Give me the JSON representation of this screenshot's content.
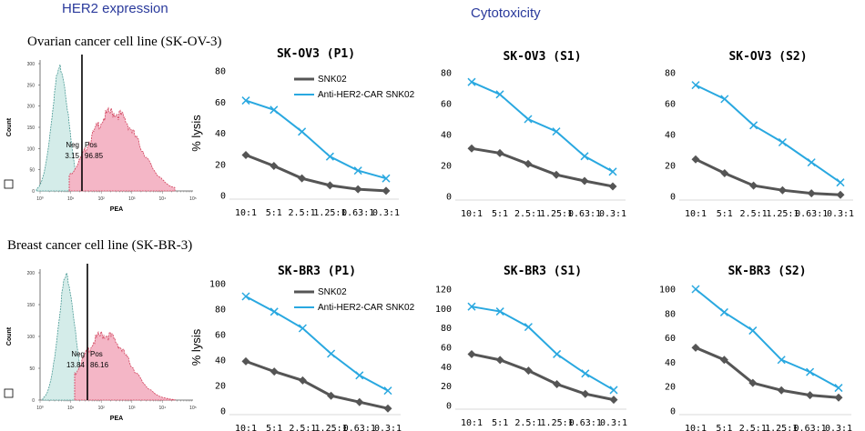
{
  "titles": {
    "her2": "HER2 expression",
    "cytotoxicity": "Cytotoxicity",
    "row1": "Ovarian cancer cell line (SK-OV-3)",
    "row2": "Breast cancer cell line (SK-BR-3)"
  },
  "histograms": [
    {
      "xlabel": "PEA",
      "ylabel": "Count",
      "yticks": [
        "300",
        "250",
        "200",
        "150",
        "100",
        "50",
        "0"
      ],
      "xticks": [
        "10⁰",
        "10¹",
        "10²",
        "10³",
        "10⁴",
        "10⁵"
      ],
      "neg_label": "Neg",
      "pos_label": "Pos",
      "neg_value": "3.15",
      "pos_value": "96.85"
    },
    {
      "xlabel": "PEA",
      "ylabel": "Count",
      "yticks": [
        "200",
        "150",
        "100",
        "50",
        "0"
      ],
      "xticks": [
        "10⁰",
        "10¹",
        "10²",
        "10³",
        "10⁴",
        "10⁵"
      ],
      "neg_label": "Neg",
      "pos_label": "Pos",
      "neg_value": "13.84",
      "pos_value": "86.16"
    }
  ],
  "colors": {
    "snk02": "#555555",
    "car": "#29a8e0",
    "neg_fill": "#d4ece9",
    "pos_fill": "#f4b6c6",
    "neg_line": "#4a9a95",
    "pos_line": "#d0405a",
    "title_blue": "#2a3a9c"
  },
  "chart_data": [
    {
      "type": "line",
      "title": "SK-OV3 (P1)",
      "ylabel": "% lysis",
      "xlabel": "",
      "categories": [
        "10:1",
        "5:1",
        "2.5:1",
        "1.25:1",
        "0.63:1",
        "0.3:1"
      ],
      "ylim": [
        0,
        80
      ],
      "yticks": [
        0,
        20,
        40,
        60,
        80
      ],
      "legend": [
        "SNK02",
        "Anti-HER2-CAR SNK02"
      ],
      "series": [
        {
          "name": "SNK02",
          "values": [
            26,
            19,
            11,
            6.5,
            4,
            3
          ]
        },
        {
          "name": "Anti-HER2-CAR SNK02",
          "values": [
            61,
            55,
            41,
            25,
            16,
            11
          ]
        }
      ]
    },
    {
      "type": "line",
      "title": "SK-OV3 (S1)",
      "ylabel": "",
      "xlabel": "",
      "categories": [
        "10:1",
        "5:1",
        "2.5:1",
        "1.25:1",
        "0.63:1",
        "0.3:1"
      ],
      "ylim": [
        0,
        80
      ],
      "yticks": [
        0,
        20,
        40,
        60,
        80
      ],
      "series": [
        {
          "name": "SNK02",
          "values": [
            31,
            28,
            21,
            14,
            10,
            6.5
          ]
        },
        {
          "name": "Anti-HER2-CAR SNK02",
          "values": [
            74,
            66,
            50,
            42,
            26,
            16
          ]
        }
      ]
    },
    {
      "type": "line",
      "title": "SK-OV3 (S2)",
      "ylabel": "",
      "xlabel": "",
      "categories": [
        "10:1",
        "5:1",
        "2.5:1",
        "1.25:1",
        "0.63:1",
        "0.3:1"
      ],
      "ylim": [
        0,
        80
      ],
      "yticks": [
        0,
        20,
        40,
        60,
        80
      ],
      "series": [
        {
          "name": "SNK02",
          "values": [
            24,
            15,
            7,
            4,
            2,
            1
          ]
        },
        {
          "name": "Anti-HER2-CAR SNK02",
          "values": [
            72,
            63,
            46,
            35,
            22,
            9
          ]
        }
      ]
    },
    {
      "type": "line",
      "title": "SK-BR3 (P1)",
      "ylabel": "% lysis",
      "xlabel": "",
      "categories": [
        "10:1",
        "5:1",
        "2.5:1",
        "1.25:1",
        "0.63:1",
        "0.3:1"
      ],
      "ylim": [
        0,
        100
      ],
      "yticks": [
        0,
        20,
        40,
        60,
        80,
        100
      ],
      "legend": [
        "SNK02",
        "Anti-HER2-CAR SNK02"
      ],
      "series": [
        {
          "name": "SNK02",
          "values": [
            39,
            31,
            24,
            12,
            7,
            2
          ]
        },
        {
          "name": "Anti-HER2-CAR SNK02",
          "values": [
            90,
            78,
            65,
            45,
            28,
            16
          ]
        }
      ]
    },
    {
      "type": "line",
      "title": "SK-BR3 (S1)",
      "ylabel": "",
      "xlabel": "",
      "categories": [
        "10:1",
        "5:1",
        "2.5:1",
        "1.25:1",
        "0.63:1",
        "0.3:1"
      ],
      "ylim": [
        0,
        120
      ],
      "yticks": [
        0,
        20,
        40,
        60,
        80,
        100,
        120
      ],
      "series": [
        {
          "name": "SNK02",
          "values": [
            53,
            47,
            36,
            22,
            12,
            6
          ]
        },
        {
          "name": "Anti-HER2-CAR SNK02",
          "values": [
            102,
            97,
            81,
            53,
            33,
            16
          ]
        }
      ]
    },
    {
      "type": "line",
      "title": "SK-BR3 (S2)",
      "ylabel": "",
      "xlabel": "",
      "categories": [
        "10:1",
        "5:1",
        "2.5:1",
        "1.25:1",
        "0.63:1",
        "0.3:1"
      ],
      "ylim": [
        0,
        100
      ],
      "yticks": [
        0,
        20,
        40,
        60,
        80,
        100
      ],
      "series": [
        {
          "name": "SNK02",
          "values": [
            52,
            42,
            23,
            17,
            13,
            11
          ]
        },
        {
          "name": "Anti-HER2-CAR SNK02",
          "values": [
            100,
            81,
            66,
            42,
            32,
            19
          ]
        }
      ]
    }
  ]
}
